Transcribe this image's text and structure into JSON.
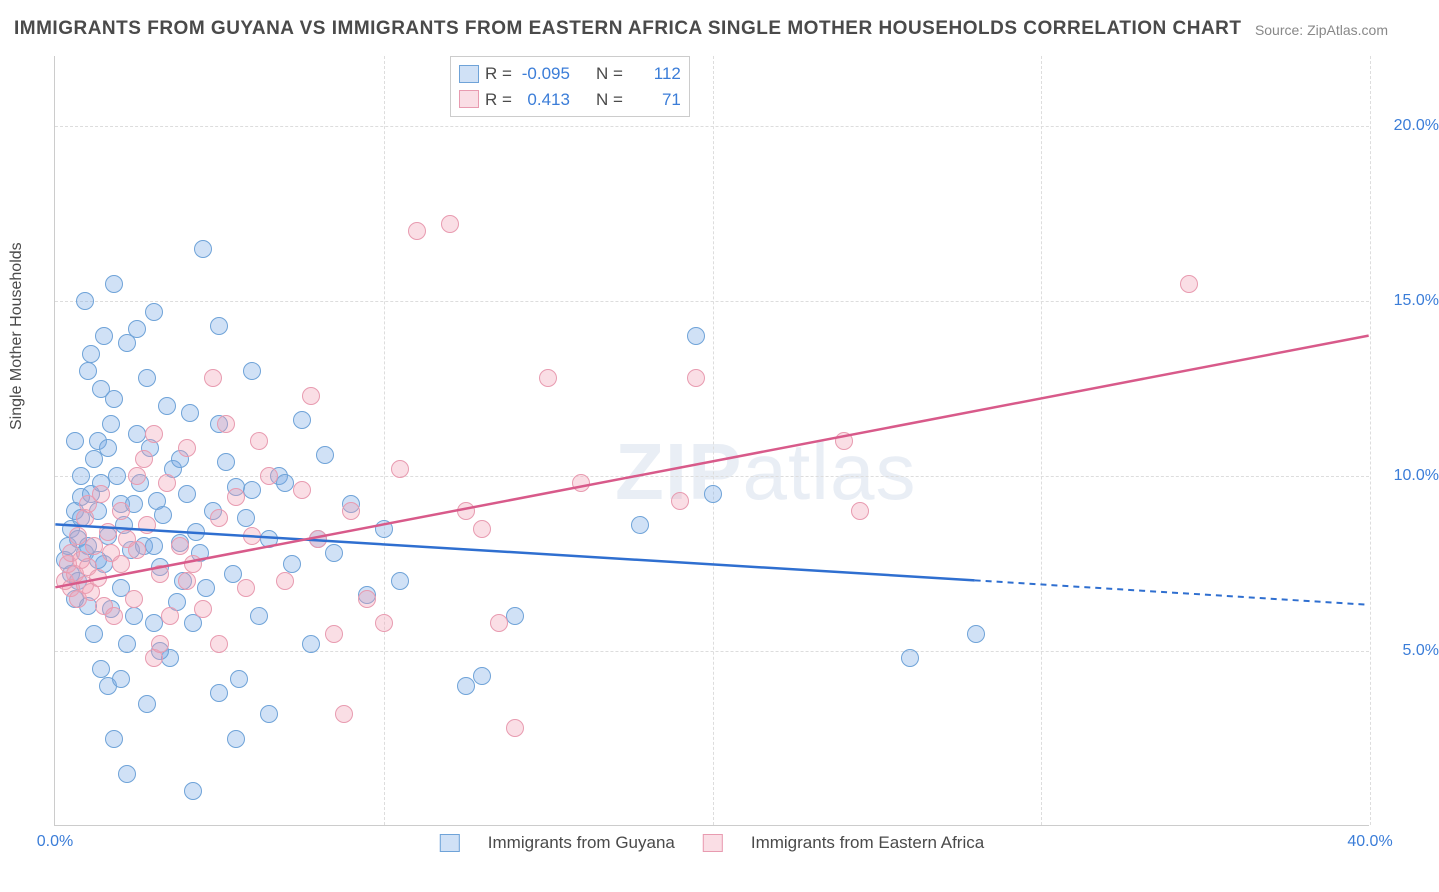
{
  "title": "IMMIGRANTS FROM GUYANA VS IMMIGRANTS FROM EASTERN AFRICA SINGLE MOTHER HOUSEHOLDS CORRELATION CHART",
  "source": "Source: ZipAtlas.com",
  "watermark_a": "ZIP",
  "watermark_b": "atlas",
  "chart": {
    "type": "scatter",
    "ylabel": "Single Mother Households",
    "xlim": [
      0,
      40
    ],
    "ylim": [
      0,
      22
    ],
    "xticks": [
      0,
      10,
      20,
      30,
      40
    ],
    "xtick_labels": [
      "0.0%",
      "",
      "",
      "",
      "40.0%"
    ],
    "yticks": [
      5,
      10,
      15,
      20
    ],
    "ytick_labels": [
      "5.0%",
      "10.0%",
      "15.0%",
      "20.0%"
    ],
    "grid_color": "#dddddd",
    "background_color": "#ffffff",
    "axis_color": "#cccccc",
    "label_color": "#3b7dd8",
    "point_radius": 9,
    "series": [
      {
        "name": "Immigrants from Guyana",
        "fill": "rgba(120,170,230,0.35)",
        "stroke": "#6fa3d8",
        "trend_stroke": "#2f6fd0",
        "R": "-0.095",
        "N": "112",
        "trend": {
          "x1": 0,
          "y1": 8.6,
          "x2": 28,
          "y2": 7.0,
          "dash_after_x": 28,
          "x3": 40,
          "y3": 6.3
        },
        "points": [
          [
            0.3,
            7.6
          ],
          [
            0.4,
            8.0
          ],
          [
            0.5,
            7.2
          ],
          [
            0.5,
            8.5
          ],
          [
            0.6,
            6.5
          ],
          [
            0.6,
            9.0
          ],
          [
            0.7,
            8.2
          ],
          [
            0.7,
            7.0
          ],
          [
            0.8,
            9.4
          ],
          [
            0.8,
            8.8
          ],
          [
            0.9,
            7.8
          ],
          [
            0.9,
            15.0
          ],
          [
            1.0,
            13.0
          ],
          [
            1.0,
            8.0
          ],
          [
            1.1,
            13.5
          ],
          [
            1.1,
            9.5
          ],
          [
            1.2,
            10.5
          ],
          [
            1.2,
            5.5
          ],
          [
            1.3,
            9.0
          ],
          [
            1.3,
            11.0
          ],
          [
            1.4,
            4.5
          ],
          [
            1.4,
            12.5
          ],
          [
            1.5,
            14.0
          ],
          [
            1.5,
            7.5
          ],
          [
            1.6,
            4.0
          ],
          [
            1.6,
            8.3
          ],
          [
            1.7,
            11.5
          ],
          [
            1.7,
            6.2
          ],
          [
            1.8,
            2.5
          ],
          [
            1.8,
            15.5
          ],
          [
            1.9,
            10.0
          ],
          [
            2.0,
            9.2
          ],
          [
            2.0,
            4.2
          ],
          [
            2.1,
            8.6
          ],
          [
            2.2,
            1.5
          ],
          [
            2.2,
            13.8
          ],
          [
            2.3,
            7.9
          ],
          [
            2.4,
            6.0
          ],
          [
            2.5,
            11.2
          ],
          [
            2.5,
            14.2
          ],
          [
            2.6,
            9.8
          ],
          [
            2.7,
            8.0
          ],
          [
            2.8,
            3.5
          ],
          [
            2.9,
            10.8
          ],
          [
            3.0,
            14.7
          ],
          [
            3.0,
            5.8
          ],
          [
            3.1,
            9.3
          ],
          [
            3.2,
            7.4
          ],
          [
            3.3,
            8.9
          ],
          [
            3.4,
            12.0
          ],
          [
            3.5,
            4.8
          ],
          [
            3.6,
            10.2
          ],
          [
            3.7,
            6.4
          ],
          [
            3.8,
            8.1
          ],
          [
            3.9,
            7.0
          ],
          [
            4.0,
            9.5
          ],
          [
            4.1,
            11.8
          ],
          [
            4.2,
            1.0
          ],
          [
            4.3,
            8.4
          ],
          [
            4.5,
            16.5
          ],
          [
            4.6,
            6.8
          ],
          [
            4.8,
            9.0
          ],
          [
            5.0,
            3.8
          ],
          [
            5.0,
            14.3
          ],
          [
            5.2,
            10.4
          ],
          [
            5.4,
            7.2
          ],
          [
            5.5,
            2.5
          ],
          [
            5.6,
            4.2
          ],
          [
            5.8,
            8.8
          ],
          [
            6.0,
            9.6
          ],
          [
            6.2,
            6.0
          ],
          [
            6.5,
            3.2
          ],
          [
            6.8,
            10.0
          ],
          [
            7.0,
            9.8
          ],
          [
            7.2,
            7.5
          ],
          [
            7.5,
            11.6
          ],
          [
            7.8,
            5.2
          ],
          [
            8.0,
            8.2
          ],
          [
            8.2,
            10.6
          ],
          [
            8.5,
            7.8
          ],
          [
            9.0,
            9.2
          ],
          [
            9.5,
            6.6
          ],
          [
            10.0,
            8.5
          ],
          [
            10.5,
            7.0
          ],
          [
            12.5,
            4.0
          ],
          [
            13.0,
            4.3
          ],
          [
            14.0,
            6.0
          ],
          [
            17.8,
            8.6
          ],
          [
            19.5,
            14.0
          ],
          [
            20.0,
            9.5
          ],
          [
            26.0,
            4.8
          ],
          [
            28.0,
            5.5
          ],
          [
            1.0,
            6.3
          ],
          [
            1.3,
            7.6
          ],
          [
            1.6,
            10.8
          ],
          [
            2.2,
            5.2
          ],
          [
            2.8,
            12.8
          ],
          [
            3.2,
            5.0
          ],
          [
            3.8,
            10.5
          ],
          [
            4.4,
            7.8
          ],
          [
            5.0,
            11.5
          ],
          [
            6.0,
            13.0
          ],
          [
            0.8,
            10.0
          ],
          [
            1.4,
            9.8
          ],
          [
            0.6,
            11.0
          ],
          [
            2.0,
            6.8
          ],
          [
            1.8,
            12.2
          ],
          [
            3.0,
            8.0
          ],
          [
            2.4,
            9.2
          ],
          [
            5.5,
            9.7
          ],
          [
            4.2,
            5.8
          ],
          [
            6.5,
            8.2
          ]
        ]
      },
      {
        "name": "Immigrants from Eastern Africa",
        "fill": "rgba(240,160,180,0.35)",
        "stroke": "#e89bb0",
        "trend_stroke": "#d85a8a",
        "R": "0.413",
        "N": "71",
        "trend": {
          "x1": 0,
          "y1": 6.8,
          "x2": 40,
          "y2": 14.0,
          "dash_after_x": 40,
          "x3": 40,
          "y3": 14.0
        },
        "points": [
          [
            0.3,
            7.0
          ],
          [
            0.4,
            7.5
          ],
          [
            0.5,
            6.8
          ],
          [
            0.5,
            7.8
          ],
          [
            0.6,
            7.2
          ],
          [
            0.7,
            6.5
          ],
          [
            0.7,
            8.3
          ],
          [
            0.8,
            7.6
          ],
          [
            0.9,
            6.9
          ],
          [
            0.9,
            8.8
          ],
          [
            1.0,
            7.4
          ],
          [
            1.0,
            9.2
          ],
          [
            1.1,
            6.7
          ],
          [
            1.2,
            8.0
          ],
          [
            1.3,
            7.1
          ],
          [
            1.4,
            9.5
          ],
          [
            1.5,
            6.3
          ],
          [
            1.6,
            8.4
          ],
          [
            1.7,
            7.8
          ],
          [
            1.8,
            6.0
          ],
          [
            2.0,
            9.0
          ],
          [
            2.0,
            7.5
          ],
          [
            2.2,
            8.2
          ],
          [
            2.4,
            6.5
          ],
          [
            2.5,
            7.9
          ],
          [
            2.7,
            10.5
          ],
          [
            2.8,
            8.6
          ],
          [
            3.0,
            4.8
          ],
          [
            3.0,
            11.2
          ],
          [
            3.2,
            7.2
          ],
          [
            3.4,
            9.8
          ],
          [
            3.5,
            6.0
          ],
          [
            3.8,
            8.0
          ],
          [
            4.0,
            10.8
          ],
          [
            4.2,
            7.5
          ],
          [
            4.5,
            6.2
          ],
          [
            4.8,
            12.8
          ],
          [
            5.0,
            8.8
          ],
          [
            5.2,
            11.5
          ],
          [
            5.5,
            9.4
          ],
          [
            5.8,
            6.8
          ],
          [
            6.0,
            8.3
          ],
          [
            6.5,
            10.0
          ],
          [
            7.0,
            7.0
          ],
          [
            7.5,
            9.6
          ],
          [
            8.0,
            8.2
          ],
          [
            8.5,
            5.5
          ],
          [
            8.8,
            3.2
          ],
          [
            9.0,
            9.0
          ],
          [
            9.5,
            6.5
          ],
          [
            10.0,
            5.8
          ],
          [
            10.5,
            10.2
          ],
          [
            11.0,
            17.0
          ],
          [
            12.0,
            17.2
          ],
          [
            12.5,
            9.0
          ],
          [
            13.0,
            8.5
          ],
          [
            13.5,
            5.8
          ],
          [
            14.0,
            2.8
          ],
          [
            15.0,
            12.8
          ],
          [
            16.0,
            9.8
          ],
          [
            19.0,
            9.3
          ],
          [
            19.5,
            12.8
          ],
          [
            24.0,
            11.0
          ],
          [
            24.5,
            9.0
          ],
          [
            34.5,
            15.5
          ],
          [
            7.8,
            12.3
          ],
          [
            4.0,
            7.0
          ],
          [
            3.2,
            5.2
          ],
          [
            2.5,
            10.0
          ],
          [
            6.2,
            11.0
          ],
          [
            5.0,
            5.2
          ]
        ]
      }
    ]
  },
  "stats_box_labels": {
    "R": "R =",
    "N": "N ="
  },
  "legend_labels": [
    "Immigrants from Guyana",
    "Immigrants from Eastern Africa"
  ]
}
